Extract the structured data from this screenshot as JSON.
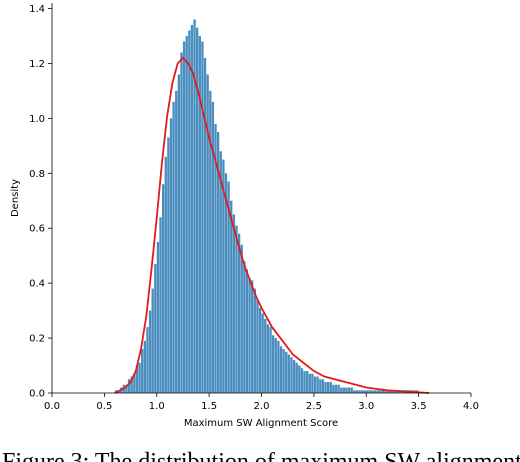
{
  "chart_data": {
    "type": "bar",
    "title": "",
    "xlabel": "Maximum SW Alignment Score",
    "ylabel": "Density",
    "xlim": [
      0.0,
      4.0
    ],
    "ylim": [
      0.0,
      1.42
    ],
    "xticks": [
      "0.0",
      "0.5",
      "1.0",
      "1.5",
      "2.0",
      "2.5",
      "3.0",
      "3.5",
      "4.0"
    ],
    "yticks": [
      "0.0",
      "0.2",
      "0.4",
      "0.6",
      "0.8",
      "1.0",
      "1.2",
      "1.4"
    ],
    "grid": false,
    "legend": "none",
    "histogram": {
      "name": "histogram",
      "bin_width": 0.025,
      "bin_start": 0.6,
      "color": "#4a8dbf",
      "values": [
        0.01,
        0.01,
        0.02,
        0.03,
        0.03,
        0.05,
        0.06,
        0.07,
        0.1,
        0.11,
        0.16,
        0.19,
        0.24,
        0.3,
        0.38,
        0.47,
        0.55,
        0.64,
        0.76,
        0.86,
        0.93,
        1.0,
        1.06,
        1.1,
        1.16,
        1.24,
        1.28,
        1.3,
        1.32,
        1.34,
        1.36,
        1.33,
        1.3,
        1.28,
        1.22,
        1.16,
        1.1,
        1.06,
        0.98,
        0.95,
        0.88,
        0.85,
        0.8,
        0.77,
        0.7,
        0.65,
        0.61,
        0.58,
        0.54,
        0.48,
        0.45,
        0.42,
        0.41,
        0.38,
        0.34,
        0.31,
        0.29,
        0.27,
        0.25,
        0.24,
        0.21,
        0.2,
        0.19,
        0.17,
        0.16,
        0.15,
        0.14,
        0.13,
        0.12,
        0.11,
        0.1,
        0.09,
        0.08,
        0.08,
        0.07,
        0.07,
        0.06,
        0.06,
        0.05,
        0.05,
        0.04,
        0.04,
        0.04,
        0.03,
        0.03,
        0.03,
        0.02,
        0.02,
        0.02,
        0.02,
        0.02,
        0.01,
        0.01,
        0.01,
        0.01,
        0.01,
        0.01,
        0.01,
        0.01,
        0.01,
        0.01,
        0.01,
        0.01,
        0.01,
        0.01,
        0.01,
        0.01,
        0.01,
        0.01,
        0.01,
        0.01,
        0.01,
        0.01,
        0.01,
        0.01,
        0.01
      ]
    },
    "density_curve": {
      "name": "density",
      "color": "#e31a1c",
      "x": [
        0.6,
        0.65,
        0.7,
        0.75,
        0.8,
        0.85,
        0.9,
        0.95,
        1.0,
        1.05,
        1.1,
        1.15,
        1.2,
        1.25,
        1.3,
        1.35,
        1.4,
        1.45,
        1.5,
        1.55,
        1.6,
        1.65,
        1.7,
        1.75,
        1.8,
        1.85,
        1.9,
        1.95,
        2.0,
        2.1,
        2.2,
        2.3,
        2.4,
        2.5,
        2.6,
        2.7,
        2.8,
        2.9,
        3.0,
        3.2,
        3.4,
        3.6
      ],
      "y": [
        0.0,
        0.01,
        0.02,
        0.04,
        0.08,
        0.16,
        0.28,
        0.45,
        0.64,
        0.84,
        1.01,
        1.13,
        1.2,
        1.22,
        1.2,
        1.16,
        1.09,
        1.01,
        0.93,
        0.86,
        0.79,
        0.72,
        0.65,
        0.58,
        0.51,
        0.45,
        0.4,
        0.35,
        0.31,
        0.24,
        0.19,
        0.14,
        0.11,
        0.08,
        0.06,
        0.05,
        0.04,
        0.03,
        0.02,
        0.01,
        0.005,
        0.0
      ]
    }
  },
  "caption": "Figure 3: The distribution of maximum SW alignment"
}
